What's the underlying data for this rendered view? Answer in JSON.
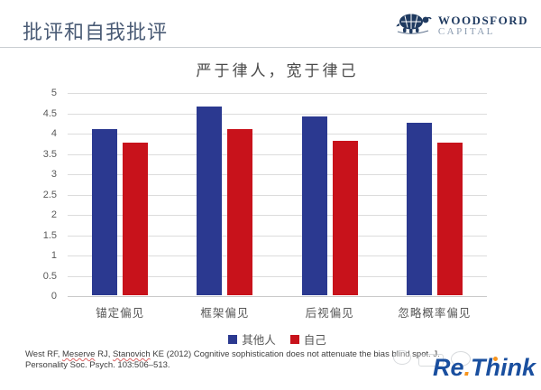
{
  "header": {
    "title": "批评和自我批评",
    "logo": {
      "line1": "WOODSFORD",
      "line2": "CAPITAL"
    }
  },
  "chart_data": {
    "type": "bar",
    "title": "严于律人，宽于律己",
    "categories": [
      "锚定偏见",
      "框架偏见",
      "后视偏见",
      "忽略概率偏见"
    ],
    "series": [
      {
        "name": "其他人",
        "color": "#2B3990",
        "values": [
          4.1,
          4.65,
          4.4,
          4.25
        ]
      },
      {
        "name": "自己",
        "color": "#C8121B",
        "values": [
          3.75,
          4.1,
          3.8,
          3.75
        ]
      }
    ],
    "ylim": [
      0,
      5
    ],
    "yticks": [
      "5",
      "4.5",
      "4",
      "3.5",
      "3",
      "2.5",
      "2",
      "1.5",
      "1",
      "0.5",
      "0"
    ],
    "grid": true,
    "legend_position": "bottom"
  },
  "citation": {
    "l1s1": "West RF, ",
    "l1s2": "Meserve",
    "l1s3": " RJ, ",
    "l1s4": "Stanovich",
    "l1s5": " KE (2012) Cognitive sophistication does not attenuate the bias blind spot. J.",
    "line2": "Personality Soc. Psych. 103:506–513."
  },
  "watermark": {
    "part1": "Re",
    "dot": ".",
    "part2": "Think"
  },
  "colors": {
    "header_title": "#4A5B75",
    "series_other": "#2B3990",
    "series_self": "#C8121B",
    "logo_navy": "#1F3A60",
    "rethink_blue": "#1A4F9F",
    "rethink_orange": "#F7941D"
  }
}
